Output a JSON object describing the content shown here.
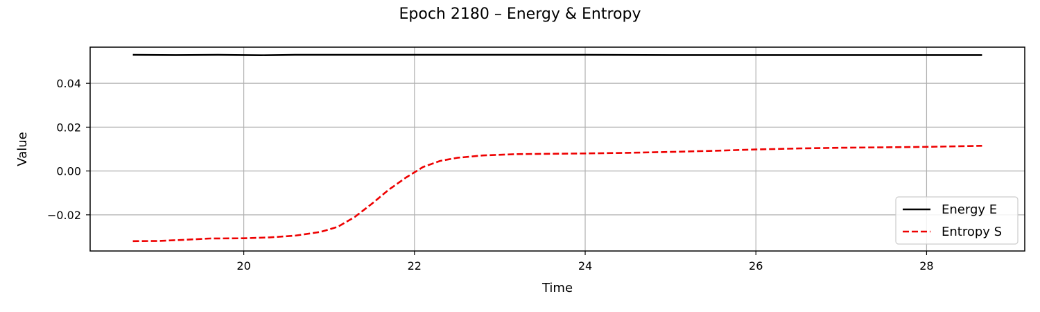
{
  "chart_data": {
    "type": "line",
    "title": "Epoch 2180 – Energy & Entropy",
    "xlabel": "Time",
    "ylabel": "Value",
    "xlim": [
      18.2,
      29.15
    ],
    "ylim": [
      -0.0365,
      0.0565
    ],
    "xticks": [
      20,
      22,
      24,
      26,
      28
    ],
    "xtick_labels": [
      "20",
      "22",
      "24",
      "26",
      "28"
    ],
    "yticks": [
      -0.02,
      0.0,
      0.02,
      0.04
    ],
    "ytick_labels": [
      "−0.02",
      "0.00",
      "0.02",
      "0.04"
    ],
    "grid": true,
    "legend_position": "lower-right",
    "series": [
      {
        "name": "Energy E",
        "color": "#000000",
        "style": "solid",
        "x": [
          18.7,
          19.2,
          19.7,
          20.2,
          20.6,
          21.0,
          21.5,
          22.0,
          22.5,
          23.0,
          24.0,
          25.0,
          26.0,
          27.0,
          28.0,
          28.65
        ],
        "y": [
          0.053,
          0.0529,
          0.053,
          0.0528,
          0.053,
          0.053,
          0.053,
          0.053,
          0.053,
          0.053,
          0.053,
          0.0529,
          0.0529,
          0.0529,
          0.0529,
          0.0529
        ]
      },
      {
        "name": "Entropy S",
        "color": "#ee0000",
        "style": "dashed",
        "x": [
          18.7,
          19.0,
          19.3,
          19.6,
          20.0,
          20.3,
          20.6,
          20.9,
          21.1,
          21.3,
          21.5,
          21.7,
          21.9,
          22.1,
          22.3,
          22.5,
          22.8,
          23.2,
          24.0,
          24.5,
          25.0,
          25.5,
          26.0,
          26.5,
          27.0,
          27.5,
          28.0,
          28.65
        ],
        "y": [
          -0.032,
          -0.0319,
          -0.0314,
          -0.0308,
          -0.0307,
          -0.0303,
          -0.0295,
          -0.0278,
          -0.0255,
          -0.021,
          -0.015,
          -0.0085,
          -0.003,
          0.0018,
          0.0046,
          0.006,
          0.0071,
          0.0077,
          0.008,
          0.0083,
          0.0087,
          0.0092,
          0.0098,
          0.0103,
          0.0106,
          0.0108,
          0.011,
          0.0115
        ]
      }
    ]
  }
}
